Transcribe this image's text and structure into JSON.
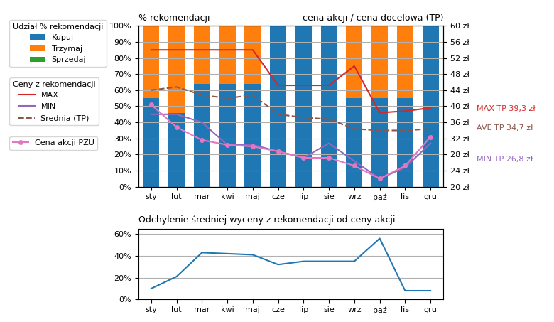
{
  "chart_data": [
    {
      "type": "bar",
      "stacked": true,
      "ylabel": "% rekomendacji",
      "y2label": "cena akcji / cena docelowa (TP)",
      "categories": [
        "sty",
        "lut",
        "mar",
        "kwi",
        "maj",
        "cze",
        "lip",
        "sie",
        "wrz",
        "paź",
        "lis",
        "gru"
      ],
      "ylim": [
        0,
        100
      ],
      "yticks": [
        {
          "value": 0,
          "label": "0%"
        },
        {
          "value": 10,
          "label": "10%"
        },
        {
          "value": 20,
          "label": "20%"
        },
        {
          "value": 30,
          "label": "30%"
        },
        {
          "value": 40,
          "label": "40%"
        },
        {
          "value": 50,
          "label": "50%"
        },
        {
          "value": 60,
          "label": "60%"
        },
        {
          "value": 70,
          "label": "70%"
        },
        {
          "value": 80,
          "label": "80%"
        },
        {
          "value": 90,
          "label": "90%"
        },
        {
          "value": 100,
          "label": "100%"
        }
      ],
      "y2lim": [
        20,
        60
      ],
      "y2ticks": [
        {
          "value": 20,
          "label": "20 zł"
        },
        {
          "value": 24,
          "label": "24 zł"
        },
        {
          "value": 28,
          "label": "28 zł"
        },
        {
          "value": 32,
          "label": "32 zł"
        },
        {
          "value": 36,
          "label": "36 zł"
        },
        {
          "value": 40,
          "label": "40 zł"
        },
        {
          "value": 44,
          "label": "44 zł"
        },
        {
          "value": 48,
          "label": "48 zł"
        },
        {
          "value": 52,
          "label": "52 zł"
        },
        {
          "value": 56,
          "label": "56 zł"
        },
        {
          "value": 60,
          "label": "60 zł"
        }
      ],
      "grid": true,
      "legend": "upper left",
      "series": [
        {
          "name": "Kupuj",
          "group": "Udział % rekomendacji",
          "color": "#1f77b4",
          "values": [
            55,
            46,
            64,
            64,
            64,
            100,
            100,
            100,
            55,
            55,
            55,
            100
          ]
        },
        {
          "name": "Trzymaj",
          "group": "Udział % rekomendacji",
          "color": "#ff7f0e",
          "values": [
            45,
            54,
            36,
            36,
            36,
            0,
            0,
            0,
            45,
            45,
            45,
            0
          ]
        },
        {
          "name": "Sprzedaj",
          "group": "Udział % rekomendacji",
          "color": "#2ca02c",
          "values": [
            0,
            0,
            0,
            0,
            0,
            0,
            0,
            0,
            0,
            0,
            0,
            0
          ]
        },
        {
          "name": "MAX",
          "type": "line",
          "axis": "y2",
          "group": "Ceny z rekomendacji",
          "color": "#d62728",
          "values": [
            54,
            54,
            54,
            54,
            54,
            45.2,
            45.2,
            45.2,
            50,
            38.4,
            38.8,
            39.6
          ]
        },
        {
          "name": "MIN",
          "type": "line",
          "axis": "y2",
          "group": "Ceny z rekomendacji",
          "color": "#9467bd",
          "values": [
            38,
            38,
            36,
            30.4,
            30.4,
            28.8,
            27.2,
            30.8,
            26.4,
            22,
            24.8,
            30.8
          ]
        },
        {
          "name": "Średnia (TP)",
          "type": "line",
          "axis": "y2",
          "group": "Ceny z rekomendacji",
          "color": "#8c564b",
          "line_style": "dashed",
          "values": [
            44,
            44.8,
            42.8,
            42,
            42.8,
            38,
            37.2,
            36.8,
            34.4,
            34,
            34,
            34.4
          ]
        },
        {
          "name": "Cena akcji PZU",
          "type": "line",
          "axis": "y2",
          "color": "#e377c2",
          "marker": "o",
          "values": [
            40.4,
            34.8,
            31.6,
            30.4,
            30,
            28.8,
            27.2,
            27.2,
            25.2,
            22,
            25.2,
            32.4
          ]
        }
      ],
      "annotations": [
        {
          "text": "MAX TP 39,3 zł",
          "y": 39.3,
          "series": "MAX"
        },
        {
          "text": "AVE TP 34,7 zł",
          "y": 34.7,
          "series": "Średnia (TP)"
        },
        {
          "text": "MIN TP 26,8 zł",
          "y": 26.8,
          "series": "MIN"
        }
      ]
    },
    {
      "type": "line",
      "title": "Odchylenie średniej wyceny z rekomendacji od ceny akcji",
      "categories": [
        "sty",
        "lut",
        "mar",
        "kwi",
        "maj",
        "cze",
        "lip",
        "sie",
        "wrz",
        "paź",
        "lis",
        "gru"
      ],
      "values": [
        10,
        21,
        43,
        42,
        41,
        32,
        35,
        35,
        35,
        56,
        8,
        8
      ],
      "ylim": [
        0,
        65
      ],
      "yticks": [
        {
          "value": 0,
          "label": "0%"
        },
        {
          "value": 20,
          "label": "20%"
        },
        {
          "value": 40,
          "label": "40%"
        },
        {
          "value": 60,
          "label": "60%"
        }
      ],
      "grid": true
    }
  ]
}
